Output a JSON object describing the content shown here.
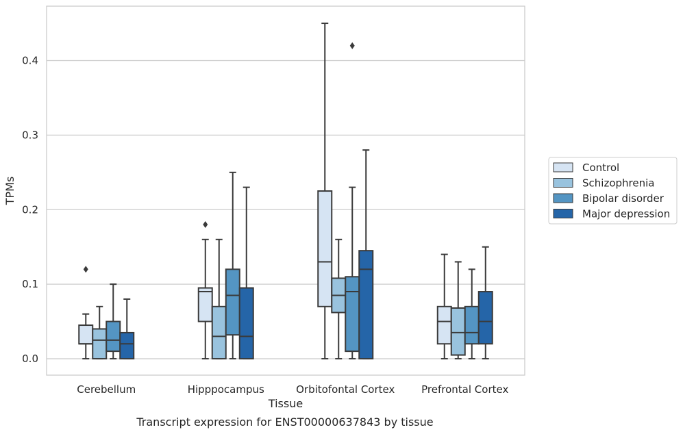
{
  "chart_data": {
    "type": "box",
    "title": "",
    "caption": "Transcript expression for ENST00000637843 by tissue",
    "xlabel": "Tissue",
    "ylabel": "TPMs",
    "ylim": [
      -0.022,
      0.473
    ],
    "yticks": [
      0.0,
      0.1,
      0.2,
      0.3,
      0.4
    ],
    "ytick_labels": [
      "0.0",
      "0.1",
      "0.2",
      "0.3",
      "0.4"
    ],
    "grid": "horizontal",
    "legend_position": "right",
    "categories": [
      "Cerebellum",
      "Hipppocampus",
      "Orbitofontal Cortex",
      "Prefrontal Cortex"
    ],
    "series": [
      {
        "name": "Control",
        "color": "#d6e4f3",
        "boxes": [
          {
            "whisker_low": 0.0,
            "q1": 0.02,
            "median": 0.02,
            "q3": 0.045,
            "whisker_high": 0.06,
            "outliers": [
              0.12
            ]
          },
          {
            "whisker_low": 0.0,
            "q1": 0.05,
            "median": 0.09,
            "q3": 0.095,
            "whisker_high": 0.16,
            "outliers": [
              0.18
            ]
          },
          {
            "whisker_low": 0.0,
            "q1": 0.07,
            "median": 0.13,
            "q3": 0.225,
            "whisker_high": 0.45,
            "outliers": []
          },
          {
            "whisker_low": 0.0,
            "q1": 0.02,
            "median": 0.05,
            "q3": 0.07,
            "whisker_high": 0.14,
            "outliers": []
          }
        ]
      },
      {
        "name": "Schizophrenia",
        "color": "#99c3de",
        "boxes": [
          {
            "whisker_low": 0.0,
            "q1": 0.0,
            "median": 0.025,
            "q3": 0.04,
            "whisker_high": 0.07,
            "outliers": []
          },
          {
            "whisker_low": 0.0,
            "q1": 0.0,
            "median": 0.03,
            "q3": 0.07,
            "whisker_high": 0.16,
            "outliers": []
          },
          {
            "whisker_low": 0.0,
            "q1": 0.062,
            "median": 0.085,
            "q3": 0.108,
            "whisker_high": 0.16,
            "outliers": []
          },
          {
            "whisker_low": 0.0,
            "q1": 0.005,
            "median": 0.035,
            "q3": 0.068,
            "whisker_high": 0.13,
            "outliers": []
          }
        ]
      },
      {
        "name": "Bipolar disorder",
        "color": "#5495c3",
        "boxes": [
          {
            "whisker_low": 0.0,
            "q1": 0.01,
            "median": 0.025,
            "q3": 0.05,
            "whisker_high": 0.1,
            "outliers": []
          },
          {
            "whisker_low": 0.0,
            "q1": 0.032,
            "median": 0.085,
            "q3": 0.12,
            "whisker_high": 0.25,
            "outliers": []
          },
          {
            "whisker_low": 0.0,
            "q1": 0.01,
            "median": 0.09,
            "q3": 0.11,
            "whisker_high": 0.23,
            "outliers": [
              0.42
            ]
          },
          {
            "whisker_low": 0.0,
            "q1": 0.02,
            "median": 0.035,
            "q3": 0.07,
            "whisker_high": 0.12,
            "outliers": []
          }
        ]
      },
      {
        "name": "Major depression",
        "color": "#2565a8",
        "boxes": [
          {
            "whisker_low": 0.0,
            "q1": 0.0,
            "median": 0.02,
            "q3": 0.035,
            "whisker_high": 0.08,
            "outliers": []
          },
          {
            "whisker_low": 0.0,
            "q1": 0.0,
            "median": 0.03,
            "q3": 0.095,
            "whisker_high": 0.23,
            "outliers": []
          },
          {
            "whisker_low": 0.0,
            "q1": 0.0,
            "median": 0.12,
            "q3": 0.145,
            "whisker_high": 0.28,
            "outliers": []
          },
          {
            "whisker_low": 0.0,
            "q1": 0.02,
            "median": 0.05,
            "q3": 0.09,
            "whisker_high": 0.15,
            "outliers": []
          }
        ]
      }
    ]
  }
}
